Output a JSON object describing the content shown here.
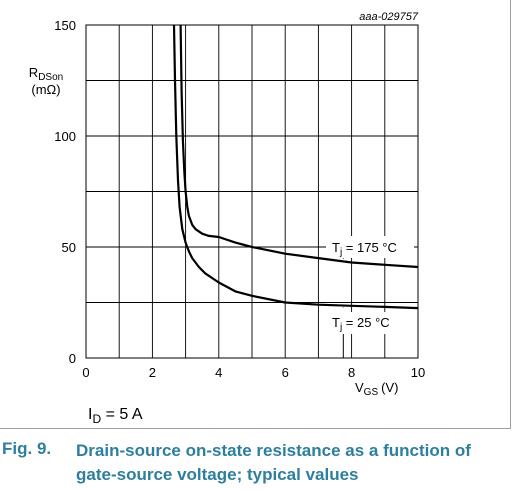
{
  "chart_data": {
    "type": "line",
    "title": "",
    "watermark": "aaa-029757",
    "xlabel": "V",
    "xlabel_sub": "GS",
    "xunit": "(V)",
    "ylabel": "R",
    "ylabel_sub": "DSon",
    "yunit": "(mΩ)",
    "xlim": [
      0,
      10
    ],
    "ylim": [
      0,
      150
    ],
    "xticks": [
      0,
      2,
      4,
      6,
      8,
      10
    ],
    "yticks": [
      0,
      50,
      100,
      150
    ],
    "grid": true,
    "condition": {
      "label": "I",
      "sub": "D",
      "rest": " = 5 A"
    },
    "series": [
      {
        "name": "Tj = 175 °C",
        "label_parts": {
          "main": "T",
          "sub": "j",
          "rest": " = 175 °C"
        },
        "x": [
          2.85,
          2.88,
          2.92,
          2.96,
          3.0,
          3.05,
          3.1,
          3.2,
          3.3,
          3.5,
          3.7,
          4.0,
          4.5,
          5.0,
          6.0,
          7.0,
          8.0,
          9.0,
          10.0
        ],
        "y": [
          150,
          120,
          98,
          84,
          75,
          68,
          64,
          60,
          58,
          56,
          55,
          54.5,
          52,
          50,
          47,
          45,
          43,
          42,
          41
        ]
      },
      {
        "name": "Tj = 25 °C",
        "label_parts": {
          "main": "T",
          "sub": "j",
          "rest": " = 25 °C"
        },
        "x": [
          2.65,
          2.68,
          2.72,
          2.77,
          2.82,
          2.9,
          3.0,
          3.1,
          3.2,
          3.4,
          3.6,
          4.0,
          4.5,
          5.0,
          6.0,
          7.0,
          8.0,
          9.0,
          10.0
        ],
        "y": [
          150,
          125,
          100,
          80,
          68,
          58,
          52,
          48,
          45,
          41,
          38,
          34,
          30,
          28,
          25,
          24,
          23.5,
          23,
          22.5
        ]
      }
    ]
  },
  "caption": {
    "fig_label": "Fig. 9.",
    "text": "Drain-source on-state resistance as a function of gate-source voltage; typical values"
  }
}
